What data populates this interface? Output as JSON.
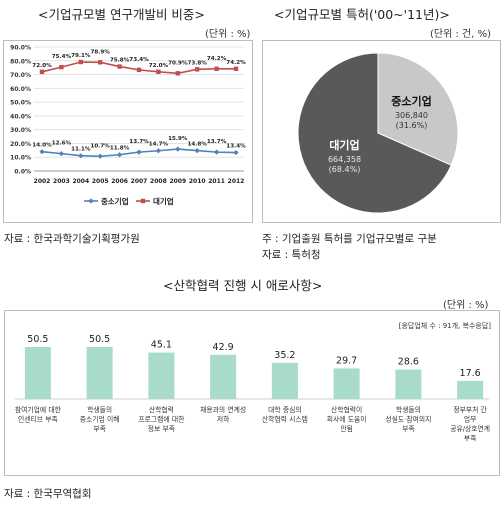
{
  "left_title": "<기업규모별 연구개발비 비중>",
  "left_unit": "(단위 : %)",
  "right_title": "<기업규모별 특허('00~'11년)>",
  "right_unit": "(단위 : 건, %)",
  "bottom_title": "<산학협력 진행 시 애로사항>",
  "bottom_unit": "(단위 : %)",
  "source_left": "자료 : 한국과학기술기획평가원",
  "note_right": "주 : 기업출원 특허를 기업규모별로 구분",
  "source_right": "자료 : 특허청",
  "source_bottom": "자료 : 한국무역협회",
  "chart_data": [
    {
      "type": "line",
      "x": [
        "2002",
        "2003",
        "2004",
        "2005",
        "2006",
        "2007",
        "2008",
        "2009",
        "2010",
        "2011",
        "2012"
      ],
      "series": [
        {
          "name": "중소기업",
          "values": [
            14.0,
            12.6,
            11.1,
            10.7,
            11.8,
            13.7,
            14.7,
            15.9,
            14.8,
            13.7,
            13.4
          ],
          "labels": [
            "14.0%",
            "12.6%",
            "11.1%",
            "10.7%",
            "11.8%",
            "13.7%",
            "14.7%",
            "15.9%",
            "14.8%",
            "13.7%",
            "13.4%"
          ],
          "color": "#4f81bd"
        },
        {
          "name": "대기업",
          "values": [
            72.0,
            75.4,
            79.1,
            78.9,
            75.8,
            73.4,
            72.0,
            70.9,
            73.8,
            74.2,
            74.2
          ],
          "labels": [
            "72.0%",
            "75.4%",
            "79.1%",
            "78.9%",
            "75.8%",
            "73.4%",
            "72.0%",
            "70.9%",
            "73.8%",
            "74.2%",
            "74.2%"
          ],
          "color": "#c0504d"
        }
      ],
      "yticks": [
        "0.0%",
        "10.0%",
        "20.0%",
        "30.0%",
        "40.0%",
        "50.0%",
        "60.0%",
        "70.0%",
        "80.0%",
        "90.0%"
      ],
      "ylim": [
        0,
        90
      ],
      "legend": "bottom"
    },
    {
      "type": "pie",
      "slices": [
        {
          "name": "중소기업",
          "value": 306840,
          "value_label": "306,840",
          "pct_label": "(31.6%)",
          "pct": 31.6,
          "color": "#c8c8c8"
        },
        {
          "name": "대기업",
          "value": 664358,
          "value_label": "664,358",
          "pct_label": "(68.4%)",
          "pct": 68.4,
          "color": "#595959"
        }
      ]
    },
    {
      "type": "bar",
      "note": "[응답업체 수 : 91개, 복수응답]",
      "categories": [
        [
          "참여기업에 대한",
          "인센티브 부족"
        ],
        [
          "학생들의",
          "중소기업 이해",
          "부족"
        ],
        [
          "산학협력",
          "프로그램에 대한",
          "정보 부족"
        ],
        [
          "채용과의 연계성",
          "저하"
        ],
        [
          "대학 중심의",
          "산학협력 시스템"
        ],
        [
          "산학협력이",
          "회사에 도움이",
          "안됨"
        ],
        [
          "학생들의",
          "성실도·참여의지",
          "부족"
        ],
        [
          "정부부처 간",
          "업무",
          "공유/상호연계",
          "부족"
        ]
      ],
      "values": [
        50.5,
        50.5,
        45.1,
        42.9,
        35.2,
        29.7,
        28.6,
        17.6
      ],
      "value_labels": [
        "50.5",
        "50.5",
        "45.1",
        "42.9",
        "35.2",
        "29.7",
        "28.6",
        "17.6"
      ],
      "color": "#a8dcc9"
    }
  ]
}
